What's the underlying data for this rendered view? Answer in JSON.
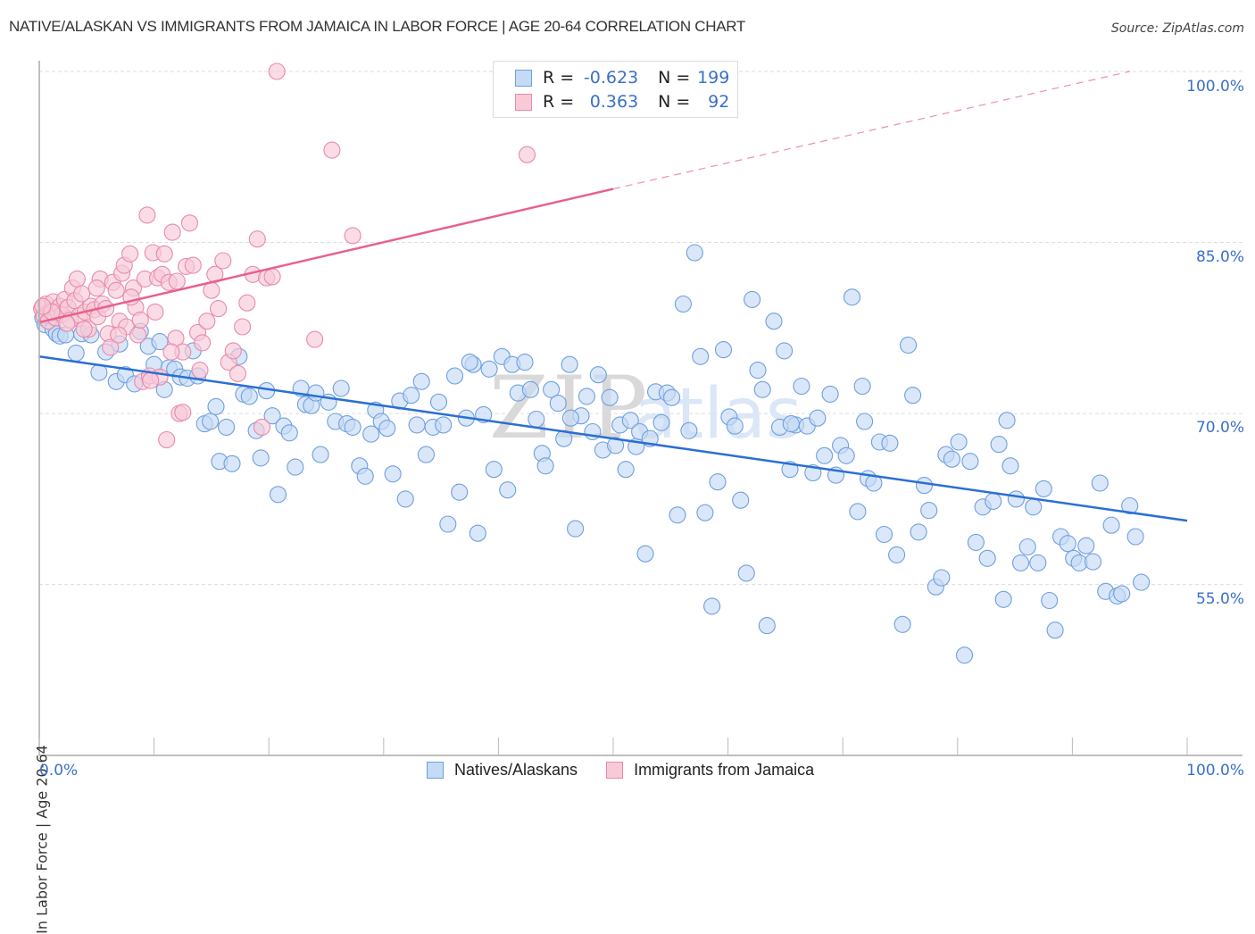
{
  "header": {
    "title": "NATIVE/ALASKAN VS IMMIGRANTS FROM JAMAICA IN LABOR FORCE | AGE 20-64 CORRELATION CHART",
    "source": "Source: ZipAtlas.com"
  },
  "legend": {
    "rows": [
      {
        "r_label": "R = ",
        "r_value": "-0.623",
        "n_label": "N = ",
        "n_value": "199"
      },
      {
        "r_label": "R = ",
        "r_value": "0.363",
        "n_label": "N = ",
        "n_value": "92"
      }
    ]
  },
  "watermark": {
    "zip": "ZIP",
    "atlas": "atlas"
  },
  "chart_data": {
    "type": "scatter",
    "title": "NATIVE/ALASKAN VS IMMIGRANTS FROM JAMAICA IN LABOR FORCE | AGE 20-64 CORRELATION CHART",
    "xlabel": "",
    "ylabel": "In Labor Force | Age 20-64",
    "xlim": [
      0,
      100
    ],
    "ylim": [
      40,
      100
    ],
    "x_tick_labels": [
      "0.0%",
      "100.0%"
    ],
    "y_ticks": [
      55,
      70,
      85,
      100
    ],
    "y_tick_labels": [
      "55.0%",
      "70.0%",
      "85.0%",
      "100.0%"
    ],
    "grid": true,
    "legend_position": "bottom-center",
    "series": [
      {
        "name": "Natives/Alaskans",
        "color": "#6f9fe0",
        "fill": "#c5daf5",
        "line_color": "#2a6fd4",
        "R": -0.623,
        "N": 199,
        "trend": {
          "x0": 0,
          "y0": 75.0,
          "x1": 100,
          "y1": 60.6
        },
        "points": [
          [
            0.3,
            78.4
          ],
          [
            0.5,
            77.8
          ],
          [
            0.8,
            79.0
          ],
          [
            1.0,
            78.5
          ],
          [
            1.2,
            77.4
          ],
          [
            1.5,
            77.0
          ],
          [
            1.8,
            76.8
          ],
          [
            2.3,
            76.9
          ],
          [
            3.2,
            75.3
          ],
          [
            3.7,
            77.0
          ],
          [
            4.5,
            76.9
          ],
          [
            5.2,
            73.6
          ],
          [
            5.8,
            75.4
          ],
          [
            6.7,
            72.8
          ],
          [
            7.0,
            76.1
          ],
          [
            7.5,
            73.4
          ],
          [
            8.3,
            72.6
          ],
          [
            8.8,
            77.2
          ],
          [
            9.5,
            75.9
          ],
          [
            10.0,
            74.3
          ],
          [
            10.5,
            76.3
          ],
          [
            10.9,
            72.1
          ],
          [
            11.3,
            74.0
          ],
          [
            11.8,
            73.9
          ],
          [
            12.3,
            73.2
          ],
          [
            12.9,
            73.1
          ],
          [
            13.4,
            75.5
          ],
          [
            13.8,
            73.3
          ],
          [
            14.4,
            69.1
          ],
          [
            14.9,
            69.3
          ],
          [
            15.4,
            70.6
          ],
          [
            15.7,
            65.8
          ],
          [
            16.3,
            68.8
          ],
          [
            16.8,
            65.6
          ],
          [
            17.4,
            75.0
          ],
          [
            17.8,
            71.7
          ],
          [
            18.3,
            71.5
          ],
          [
            18.9,
            68.5
          ],
          [
            19.3,
            66.1
          ],
          [
            19.8,
            72.0
          ],
          [
            20.3,
            69.8
          ],
          [
            20.8,
            62.9
          ],
          [
            21.3,
            68.9
          ],
          [
            21.8,
            68.3
          ],
          [
            22.3,
            65.3
          ],
          [
            22.8,
            72.2
          ],
          [
            23.2,
            70.8
          ],
          [
            23.7,
            70.7
          ],
          [
            24.1,
            71.8
          ],
          [
            24.5,
            66.4
          ],
          [
            25.2,
            71.0
          ],
          [
            25.8,
            69.3
          ],
          [
            26.3,
            72.2
          ],
          [
            26.8,
            69.1
          ],
          [
            27.3,
            68.8
          ],
          [
            27.9,
            65.4
          ],
          [
            28.4,
            64.5
          ],
          [
            28.9,
            68.2
          ],
          [
            29.3,
            70.3
          ],
          [
            29.8,
            69.3
          ],
          [
            30.3,
            68.7
          ],
          [
            30.8,
            64.7
          ],
          [
            31.4,
            71.1
          ],
          [
            31.9,
            62.5
          ],
          [
            32.4,
            71.6
          ],
          [
            32.9,
            69.0
          ],
          [
            33.3,
            72.8
          ],
          [
            33.7,
            66.4
          ],
          [
            34.3,
            68.8
          ],
          [
            34.8,
            71.0
          ],
          [
            35.2,
            69.0
          ],
          [
            35.6,
            60.3
          ],
          [
            36.2,
            73.3
          ],
          [
            36.6,
            63.1
          ],
          [
            37.2,
            69.6
          ],
          [
            37.8,
            74.3
          ],
          [
            38.2,
            59.5
          ],
          [
            38.7,
            69.9
          ],
          [
            39.2,
            73.9
          ],
          [
            39.6,
            65.1
          ],
          [
            40.3,
            75.0
          ],
          [
            40.8,
            63.3
          ],
          [
            41.2,
            74.3
          ],
          [
            41.7,
            71.8
          ],
          [
            42.3,
            74.5
          ],
          [
            42.8,
            72.1
          ],
          [
            43.3,
            69.5
          ],
          [
            43.8,
            66.5
          ],
          [
            44.1,
            65.4
          ],
          [
            44.6,
            72.1
          ],
          [
            45.2,
            70.9
          ],
          [
            45.7,
            67.8
          ],
          [
            46.2,
            74.3
          ],
          [
            46.7,
            59.9
          ],
          [
            47.2,
            69.8
          ],
          [
            47.7,
            71.5
          ],
          [
            48.2,
            68.4
          ],
          [
            48.7,
            73.4
          ],
          [
            49.1,
            66.8
          ],
          [
            49.7,
            71.4
          ],
          [
            50.2,
            67.2
          ],
          [
            50.6,
            69.0
          ],
          [
            51.1,
            65.1
          ],
          [
            51.5,
            69.4
          ],
          [
            52.0,
            67.1
          ],
          [
            52.3,
            68.4
          ],
          [
            52.8,
            57.7
          ],
          [
            53.2,
            67.8
          ],
          [
            53.7,
            71.9
          ],
          [
            54.2,
            69.2
          ],
          [
            54.7,
            71.8
          ],
          [
            55.1,
            71.4
          ],
          [
            55.6,
            61.1
          ],
          [
            56.1,
            79.6
          ],
          [
            56.6,
            68.5
          ],
          [
            57.1,
            84.1
          ],
          [
            57.6,
            75.0
          ],
          [
            58.0,
            61.3
          ],
          [
            58.6,
            53.1
          ],
          [
            59.1,
            64.0
          ],
          [
            59.6,
            75.6
          ],
          [
            60.1,
            69.7
          ],
          [
            60.6,
            68.9
          ],
          [
            61.1,
            62.4
          ],
          [
            61.6,
            56.0
          ],
          [
            62.1,
            80.0
          ],
          [
            62.6,
            73.8
          ],
          [
            63.0,
            72.1
          ],
          [
            63.4,
            51.4
          ],
          [
            64.0,
            78.1
          ],
          [
            64.5,
            68.8
          ],
          [
            64.9,
            75.5
          ],
          [
            65.4,
            65.1
          ],
          [
            65.9,
            69.0
          ],
          [
            66.4,
            72.4
          ],
          [
            66.9,
            68.9
          ],
          [
            67.4,
            64.8
          ],
          [
            67.8,
            69.6
          ],
          [
            68.4,
            66.3
          ],
          [
            68.9,
            71.7
          ],
          [
            69.4,
            64.6
          ],
          [
            69.8,
            67.2
          ],
          [
            70.3,
            66.3
          ],
          [
            70.8,
            80.2
          ],
          [
            71.3,
            61.4
          ],
          [
            71.7,
            72.4
          ],
          [
            72.2,
            64.3
          ],
          [
            72.7,
            63.9
          ],
          [
            73.2,
            67.5
          ],
          [
            73.6,
            59.4
          ],
          [
            74.1,
            67.4
          ],
          [
            74.7,
            57.6
          ],
          [
            75.2,
            51.5
          ],
          [
            75.7,
            76.0
          ],
          [
            76.1,
            71.6
          ],
          [
            76.6,
            59.6
          ],
          [
            77.1,
            63.7
          ],
          [
            77.5,
            61.5
          ],
          [
            78.1,
            54.8
          ],
          [
            78.6,
            55.6
          ],
          [
            79.0,
            66.4
          ],
          [
            79.5,
            66.0
          ],
          [
            80.1,
            67.5
          ],
          [
            80.6,
            48.8
          ],
          [
            81.1,
            65.8
          ],
          [
            81.6,
            58.7
          ],
          [
            82.2,
            61.8
          ],
          [
            82.6,
            57.3
          ],
          [
            83.1,
            62.3
          ],
          [
            83.6,
            67.3
          ],
          [
            84.0,
            53.7
          ],
          [
            84.6,
            65.4
          ],
          [
            85.1,
            62.5
          ],
          [
            85.5,
            56.9
          ],
          [
            86.1,
            58.3
          ],
          [
            86.6,
            61.8
          ],
          [
            87.0,
            56.9
          ],
          [
            87.5,
            63.4
          ],
          [
            88.0,
            53.6
          ],
          [
            88.5,
            51.0
          ],
          [
            89.0,
            59.2
          ],
          [
            89.6,
            58.6
          ],
          [
            90.1,
            57.3
          ],
          [
            90.6,
            56.9
          ],
          [
            91.2,
            58.4
          ],
          [
            91.8,
            57.0
          ],
          [
            92.4,
            63.9
          ],
          [
            92.9,
            54.4
          ],
          [
            93.4,
            60.2
          ],
          [
            93.9,
            54.0
          ],
          [
            94.3,
            54.2
          ],
          [
            95.0,
            61.9
          ],
          [
            95.5,
            59.2
          ],
          [
            96.0,
            55.2
          ],
          [
            65.5,
            69.1
          ],
          [
            71.9,
            69.3
          ],
          [
            84.3,
            69.4
          ],
          [
            37.5,
            74.5
          ],
          [
            46.3,
            69.6
          ]
        ]
      },
      {
        "name": "Immigrants from Jamaica",
        "color": "#e88aa8",
        "fill": "#f8cad8",
        "line_color": "#e8608a",
        "R": 0.363,
        "N": 92,
        "trend": {
          "x0": 0,
          "y0": 78.0,
          "x1": 50,
          "y1": 89.7,
          "dashed_to": {
            "x": 95,
            "y": 100.0
          }
        },
        "points": [
          [
            0.2,
            79.2
          ],
          [
            0.4,
            78.6
          ],
          [
            0.6,
            79.6
          ],
          [
            0.8,
            78.1
          ],
          [
            1.0,
            79.0
          ],
          [
            1.2,
            79.8
          ],
          [
            1.4,
            78.4
          ],
          [
            1.6,
            78.9
          ],
          [
            1.8,
            79.4
          ],
          [
            2.0,
            78.7
          ],
          [
            2.2,
            80.0
          ],
          [
            2.5,
            79.3
          ],
          [
            2.7,
            78.2
          ],
          [
            2.9,
            81.0
          ],
          [
            3.1,
            79.9
          ],
          [
            3.3,
            81.8
          ],
          [
            3.5,
            78.6
          ],
          [
            3.7,
            80.5
          ],
          [
            4.0,
            78.9
          ],
          [
            4.3,
            77.4
          ],
          [
            4.5,
            79.4
          ],
          [
            4.8,
            79.1
          ],
          [
            5.1,
            78.5
          ],
          [
            5.3,
            81.8
          ],
          [
            5.5,
            79.6
          ],
          [
            5.8,
            79.2
          ],
          [
            6.0,
            77.0
          ],
          [
            6.2,
            75.8
          ],
          [
            6.4,
            81.5
          ],
          [
            6.7,
            80.8
          ],
          [
            7.0,
            78.1
          ],
          [
            7.2,
            82.3
          ],
          [
            7.4,
            83.0
          ],
          [
            7.6,
            77.6
          ],
          [
            7.9,
            84.0
          ],
          [
            8.2,
            81.0
          ],
          [
            8.4,
            79.3
          ],
          [
            8.6,
            76.9
          ],
          [
            8.8,
            78.2
          ],
          [
            9.0,
            72.8
          ],
          [
            9.2,
            81.8
          ],
          [
            9.4,
            87.4
          ],
          [
            9.6,
            73.3
          ],
          [
            9.9,
            84.1
          ],
          [
            10.1,
            78.9
          ],
          [
            10.3,
            81.9
          ],
          [
            10.5,
            73.2
          ],
          [
            10.7,
            82.2
          ],
          [
            10.9,
            84.0
          ],
          [
            11.1,
            67.7
          ],
          [
            11.3,
            81.5
          ],
          [
            11.6,
            85.9
          ],
          [
            11.9,
            76.6
          ],
          [
            12.2,
            70.0
          ],
          [
            12.5,
            75.4
          ],
          [
            12.8,
            82.9
          ],
          [
            13.1,
            86.7
          ],
          [
            13.4,
            83.0
          ],
          [
            13.8,
            77.1
          ],
          [
            14.2,
            76.2
          ],
          [
            14.6,
            78.1
          ],
          [
            15.0,
            80.8
          ],
          [
            15.3,
            82.2
          ],
          [
            15.6,
            79.2
          ],
          [
            16.0,
            83.4
          ],
          [
            16.5,
            74.5
          ],
          [
            16.9,
            75.5
          ],
          [
            17.3,
            73.5
          ],
          [
            17.7,
            77.6
          ],
          [
            18.1,
            79.7
          ],
          [
            18.6,
            82.2
          ],
          [
            19.0,
            85.3
          ],
          [
            19.4,
            68.8
          ],
          [
            19.8,
            81.9
          ],
          [
            20.3,
            82.0
          ],
          [
            20.7,
            100.0
          ],
          [
            24.0,
            76.5
          ],
          [
            25.5,
            93.1
          ],
          [
            27.3,
            85.6
          ],
          [
            42.5,
            92.7
          ],
          [
            3.9,
            77.4
          ],
          [
            5.0,
            81.0
          ],
          [
            6.9,
            76.9
          ],
          [
            9.7,
            72.9
          ],
          [
            11.5,
            75.4
          ],
          [
            12.0,
            81.6
          ],
          [
            2.4,
            77.9
          ],
          [
            1.1,
            78.9
          ],
          [
            0.3,
            79.4
          ],
          [
            8.0,
            80.2
          ],
          [
            12.5,
            70.1
          ],
          [
            14.0,
            73.8
          ]
        ]
      }
    ]
  },
  "xaxis": {
    "left_label": "0.0%",
    "right_label": "100.0%"
  },
  "bottom_legend": [
    {
      "label": "Natives/Alaskans"
    },
    {
      "label": "Immigrants from Jamaica"
    }
  ],
  "colors": {
    "blue_fill": "#c5daf5",
    "blue_stroke": "#6f9fe0",
    "blue_line": "#2a6fd4",
    "pink_fill": "#f8cad8",
    "pink_stroke": "#e88aa8",
    "pink_line": "#e8608a",
    "tick_label": "#3a70c8",
    "grid": "#dddddd"
  }
}
